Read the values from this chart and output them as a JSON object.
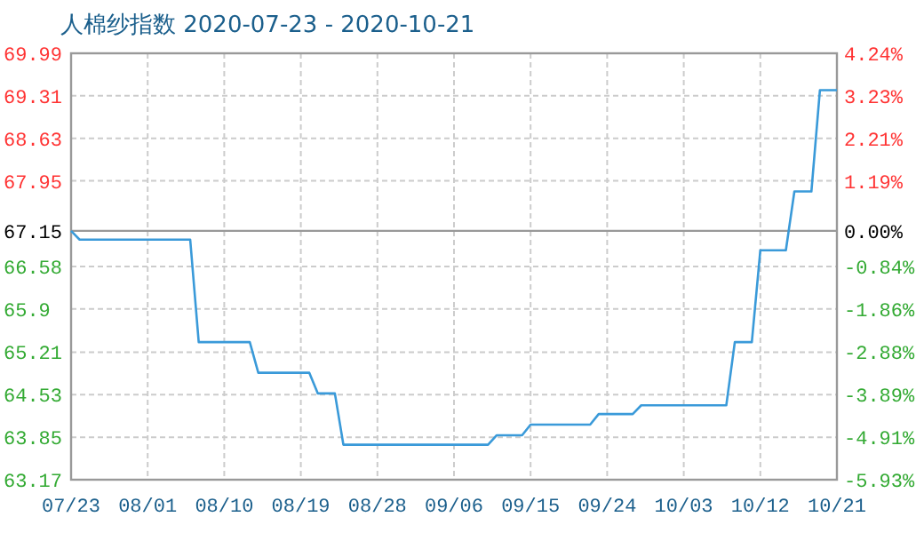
{
  "chart_data": {
    "type": "line",
    "title": "人棉纱指数 2020-07-23 - 2020-10-21",
    "x": [
      "--07-23",
      "--07-24",
      "--08-06",
      "--08-07",
      "--08-13",
      "--08-14",
      "--08-20",
      "--08-21",
      "--08-23",
      "--08-24",
      "--09-10",
      "--09-11",
      "--09-14",
      "--09-15",
      "--09-22",
      "--09-23",
      "--09-27",
      "--09-28",
      "--10-08",
      "--10-09",
      "--10-11",
      "--10-12",
      "--10-15",
      "--10-16",
      "--10-18",
      "--10-19",
      "--10-21"
    ],
    "series": [
      {
        "color": "#3a9ad9",
        "values": [
          67.15,
          67.01,
          67.01,
          65.37,
          65.37,
          64.88,
          64.88,
          64.55,
          64.55,
          63.73,
          63.73,
          63.88,
          63.88,
          64.05,
          64.05,
          64.22,
          64.22,
          64.36,
          64.36,
          65.37,
          65.37,
          66.84,
          66.84,
          67.78,
          67.78,
          69.4,
          69.4
        ]
      }
    ],
    "xlim": [
      "--07-23",
      "--10-21"
    ],
    "xticks": [
      {
        "value": "--07-23",
        "label": "07/23"
      },
      {
        "value": "--08-01",
        "label": "08/01"
      },
      {
        "value": "--08-10",
        "label": "08/10"
      },
      {
        "value": "--08-19",
        "label": "08/19"
      },
      {
        "value": "--08-28",
        "label": "08/28"
      },
      {
        "value": "--09-06",
        "label": "09/06"
      },
      {
        "value": "--09-15",
        "label": "09/15"
      },
      {
        "value": "--09-24",
        "label": "09/24"
      },
      {
        "value": "--10-03",
        "label": "10/03"
      },
      {
        "value": "--10-12",
        "label": "10/12"
      },
      {
        "value": "--10-21",
        "label": "10/21"
      }
    ],
    "ylim": [
      63.17,
      69.99
    ],
    "yticks": [
      63.17,
      63.85,
      64.53,
      65.21,
      65.9,
      66.58,
      67.15,
      67.95,
      68.63,
      69.31,
      69.99
    ],
    "y2lim": [
      -5.93,
      4.24
    ],
    "y2ticks": [
      {
        "value": -5.93,
        "label": "-5.93%"
      },
      {
        "value": -4.91,
        "label": "-4.91%"
      },
      {
        "value": -3.89,
        "label": "-3.89%"
      },
      {
        "value": -2.88,
        "label": "-2.88%"
      },
      {
        "value": -1.86,
        "label": "-1.86%"
      },
      {
        "value": -0.84,
        "label": "-0.84%"
      },
      {
        "value": 0,
        "label": "0.00%"
      },
      {
        "value": 1.19,
        "label": "1.19%"
      },
      {
        "value": 2.21,
        "label": "2.21%"
      },
      {
        "value": 3.23,
        "label": "3.23%"
      },
      {
        "value": 4.24,
        "label": "4.24%"
      }
    ],
    "ref_lines": [
      {
        "axis": "y",
        "value": 67.15,
        "color": "#999999"
      }
    ],
    "grid": true,
    "marker": "none",
    "line_style": "solid"
  }
}
